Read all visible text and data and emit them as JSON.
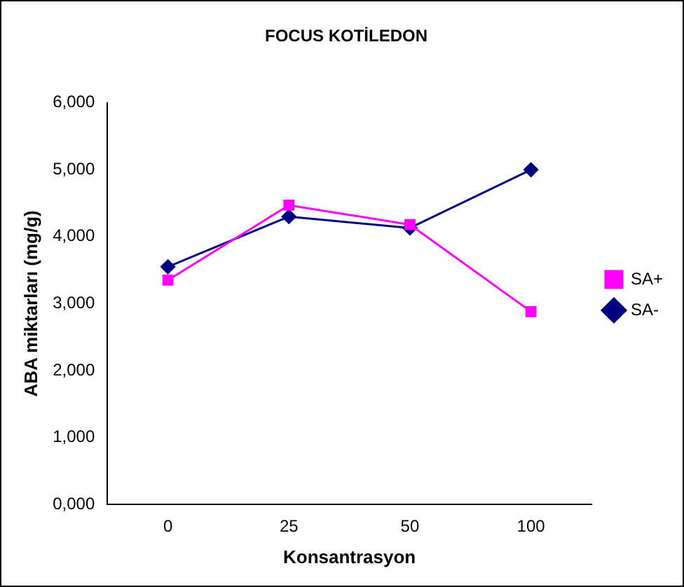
{
  "chart_data": {
    "type": "line",
    "title": "FOCUS KOTİLEDON",
    "xlabel": "Konsantrasyon",
    "ylabel": "ABA miktarları (mg/g)",
    "categories": [
      "0",
      "25",
      "50",
      "100"
    ],
    "series": [
      {
        "name": "SA-",
        "color": "#000080",
        "marker": "diamond",
        "values": [
          3550,
          4300,
          4130,
          5000
        ]
      },
      {
        "name": "SA+",
        "color": "#ff00ff",
        "marker": "square",
        "values": [
          3350,
          4470,
          4180,
          2880
        ]
      }
    ],
    "ylim": [
      0,
      6000
    ],
    "yticks": [
      {
        "value": 0,
        "label": "0,000"
      },
      {
        "value": 1000,
        "label": "1,000"
      },
      {
        "value": 2000,
        "label": "2,000"
      },
      {
        "value": 3000,
        "label": "3,000"
      },
      {
        "value": 4000,
        "label": "4,000"
      },
      {
        "value": 5000,
        "label": "5,000"
      },
      {
        "value": 6000,
        "label": "6,000"
      }
    ],
    "grid": false,
    "legend": "right",
    "line_style": "solid"
  }
}
